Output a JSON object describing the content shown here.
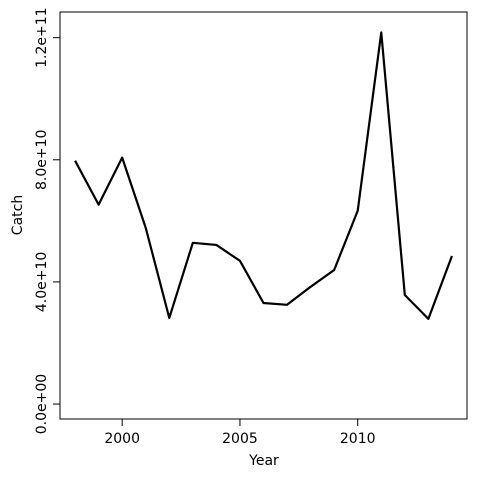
{
  "chart_data": {
    "type": "line",
    "x_label": "Year",
    "y_label": "Catch",
    "x": [
      1998,
      1999,
      2000,
      2001,
      2002,
      2003,
      2004,
      2005,
      2006,
      2007,
      2008,
      2009,
      2010,
      2011,
      2012,
      2013,
      2014
    ],
    "series": [
      {
        "color": "#000000",
        "values": [
          79700000000,
          65300000000,
          80700000000,
          57700000000,
          28200000000,
          52800000000,
          52100000000,
          46900000000,
          33100000000,
          32500000000,
          38400000000,
          43900000000,
          63300000000,
          121700000000,
          35700000000,
          27900000000,
          48500000000
        ]
      }
    ],
    "xlim": [
      1997.36,
      2014.64
    ],
    "xticks": [
      2000,
      2005,
      2010
    ],
    "ylim": [
      -4900000000,
      128400000000
    ],
    "yticks": [
      {
        "value": 0,
        "label": "0.0e+00"
      },
      {
        "value": 40000000000,
        "label": "4.0e+10"
      },
      {
        "value": 80000000000,
        "label": "8.0e+10"
      },
      {
        "value": 120000000000,
        "label": "1.2e+11"
      }
    ],
    "grid": false
  }
}
